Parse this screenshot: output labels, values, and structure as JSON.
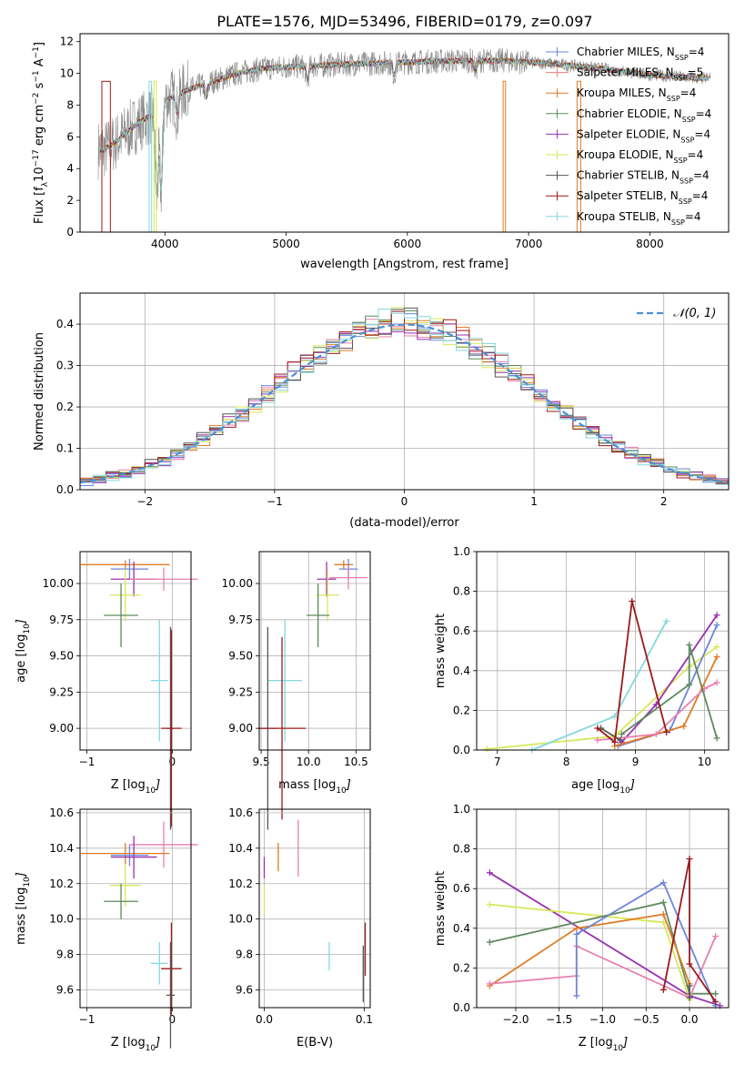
{
  "figure": {
    "title": "PLATE=1576, MJD=53496, FIBERID=0179, z=0.097"
  },
  "colors": {
    "chabrier_miles": "#6d86d9",
    "salpeter_miles": "#f07c7c",
    "kroupa_miles": "#e07b26",
    "chabrier_elodie": "#5e8a5e",
    "salpeter_elodie": "#9b30b0",
    "kroupa_elodie": "#d7e85a",
    "chabrier_stelib": "#555555",
    "salpeter_stelib": "#9b1a1a",
    "kroupa_stelib": "#84d8e0",
    "pink": "#e87fb0",
    "data_gray": "#8a8a8a",
    "normal_curve": "#4a90d9",
    "grid": "#b0b0b0"
  },
  "chart_data": [
    {
      "id": "spectrum",
      "type": "line",
      "title": "PLATE=1576, MJD=53496, FIBERID=0179, z=0.097",
      "xlabel": "wavelength [Angstrom, rest frame]",
      "ylabel_parts": [
        "Flux [f",
        "λ",
        "10",
        "−17",
        " erg cm",
        "−2",
        " s",
        "−1",
        " A",
        "−1",
        "]"
      ],
      "xlim": [
        3300,
        8650
      ],
      "ylim": [
        0,
        12.5
      ],
      "xticks": [
        4000,
        5000,
        6000,
        7000,
        8000
      ],
      "yticks": [
        0,
        2,
        4,
        6,
        8,
        10,
        12
      ],
      "grid": false,
      "legend_position": "right",
      "legend": [
        {
          "label": "Chabrier MILES, N",
          "sub": "SSP",
          "suffix": "=4",
          "color_key": "chabrier_miles"
        },
        {
          "label": "Salpeter MILES, N",
          "sub": "SSP",
          "suffix": "=5",
          "color_key": "salpeter_miles"
        },
        {
          "label": "Kroupa MILES, N",
          "sub": "SSP",
          "suffix": "=4",
          "color_key": "kroupa_miles"
        },
        {
          "label": "Chabrier ELODIE, N",
          "sub": "SSP",
          "suffix": "=4",
          "color_key": "chabrier_elodie"
        },
        {
          "label": "Salpeter ELODIE, N",
          "sub": "SSP",
          "suffix": "=4",
          "color_key": "salpeter_elodie"
        },
        {
          "label": "Kroupa ELODIE, N",
          "sub": "SSP",
          "suffix": "=4",
          "color_key": "kroupa_elodie"
        },
        {
          "label": "Chabrier STELIB, N",
          "sub": "SSP",
          "suffix": "=4",
          "color_key": "chabrier_stelib"
        },
        {
          "label": "Salpeter STELIB, N",
          "sub": "SSP",
          "suffix": "=4",
          "color_key": "salpeter_stelib"
        },
        {
          "label": "Kroupa STELIB, N",
          "sub": "SSP",
          "suffix": "=4",
          "color_key": "kroupa_stelib"
        }
      ],
      "continuum": [
        [
          3500,
          5.2
        ],
        [
          3600,
          5.7
        ],
        [
          3700,
          6.4
        ],
        [
          3800,
          7.0
        ],
        [
          3900,
          7.4
        ],
        [
          4000,
          8.3
        ],
        [
          4200,
          9.0
        ],
        [
          4400,
          9.5
        ],
        [
          4600,
          10.0
        ],
        [
          4800,
          10.3
        ],
        [
          5000,
          10.4
        ],
        [
          5300,
          10.5
        ],
        [
          5600,
          10.6
        ],
        [
          6000,
          10.7
        ],
        [
          6400,
          10.8
        ],
        [
          6800,
          10.8
        ],
        [
          7200,
          10.6
        ],
        [
          7600,
          10.3
        ],
        [
          8000,
          9.9
        ],
        [
          8400,
          9.7
        ]
      ],
      "dips": [
        [
          3933,
          2.0
        ],
        [
          3968,
          2.6
        ],
        [
          4102,
          7.5
        ],
        [
          4340,
          8.5
        ],
        [
          5175,
          9.6
        ],
        [
          5890,
          9.9
        ],
        [
          6563,
          10.2
        ]
      ],
      "gaps": [
        [
          3480,
          3550,
          "salpeter_stelib"
        ],
        [
          3870,
          3890,
          "kroupa_stelib"
        ],
        [
          3910,
          3930,
          "kroupa_elodie"
        ],
        [
          6790,
          6810,
          "kroupa_miles"
        ],
        [
          7400,
          7430,
          "kroupa_miles"
        ]
      ]
    },
    {
      "id": "residuals",
      "type": "histogram",
      "xlabel": "(data-model)/error",
      "ylabel": "Normed distribution",
      "xlim": [
        -2.5,
        2.5
      ],
      "ylim": [
        0,
        0.475
      ],
      "xticks": [
        -2,
        -1,
        0,
        1,
        2
      ],
      "yticks": [
        0.0,
        0.1,
        0.2,
        0.3,
        0.4
      ],
      "grid": true,
      "legend_position": "top-right",
      "legend_label": "𝒩(0, 1)",
      "bin_width": 0.1
    },
    {
      "id": "age_vs_Z",
      "type": "scatter",
      "xlabel": "Z [log10(Z/Z⊙)]",
      "ylabel": "age [log10(age/yr)]",
      "xlim": [
        -1.08,
        0.22
      ],
      "ylim": [
        8.85,
        10.22
      ],
      "xticks": [
        -1,
        0
      ],
      "yticks": [
        9.0,
        9.25,
        9.5,
        9.75,
        10.0
      ],
      "grid": true,
      "points": [
        {
          "color_key": "kroupa_miles",
          "x": -0.55,
          "xerr": 0.52,
          "y": 10.13,
          "yerr": 0.03
        },
        {
          "color_key": "chabrier_miles",
          "x": -0.5,
          "xerr": 0.22,
          "y": 10.1,
          "yerr": 0.07
        },
        {
          "color_key": "salpeter_elodie",
          "x": -0.45,
          "xerr": 0.27,
          "y": 10.03,
          "yerr": 0.12
        },
        {
          "color_key": "pink",
          "x": -0.1,
          "xerr": 0.4,
          "y": 10.03,
          "yerr": 0.08
        },
        {
          "color_key": "kroupa_elodie",
          "x": -0.55,
          "xerr": 0.18,
          "y": 9.92,
          "yerr": 0.18
        },
        {
          "color_key": "chabrier_elodie",
          "x": -0.6,
          "xerr": 0.2,
          "y": 9.78,
          "yerr": 0.22
        },
        {
          "color_key": "kroupa_stelib",
          "x": -0.15,
          "xerr": 0.1,
          "y": 9.33,
          "yerr": 0.42
        },
        {
          "color_key": "chabrier_stelib",
          "x": -0.02,
          "xerr": 0.05,
          "y": 9.0,
          "yerr": 0.7
        },
        {
          "color_key": "salpeter_stelib",
          "x": -0.01,
          "xerr": 0.12,
          "y": 9.0,
          "yerr": 0.68
        }
      ]
    },
    {
      "id": "age_vs_mass",
      "type": "scatter",
      "xlabel": "mass [log10(M/M⊙)]",
      "ylabel": "",
      "xlim": [
        9.48,
        10.65
      ],
      "ylim": [
        8.85,
        10.22
      ],
      "xticks": [
        9.5,
        10.0,
        10.5
      ],
      "yticks": [
        9.0,
        9.25,
        9.5,
        9.75,
        10.0
      ],
      "grid": true,
      "points": [
        {
          "color_key": "kroupa_miles",
          "x": 10.37,
          "xerr": 0.1,
          "y": 10.13,
          "yerr": 0.03
        },
        {
          "color_key": "chabrier_miles",
          "x": 10.42,
          "xerr": 0.1,
          "y": 10.1,
          "yerr": 0.07
        },
        {
          "color_key": "pink",
          "x": 10.42,
          "xerr": 0.2,
          "y": 10.04,
          "yerr": 0.08
        },
        {
          "color_key": "salpeter_elodie",
          "x": 10.19,
          "xerr": 0.1,
          "y": 10.03,
          "yerr": 0.12
        },
        {
          "color_key": "kroupa_elodie",
          "x": 10.2,
          "xerr": 0.12,
          "y": 9.92,
          "yerr": 0.18
        },
        {
          "color_key": "chabrier_elodie",
          "x": 10.1,
          "xerr": 0.12,
          "y": 9.78,
          "yerr": 0.22
        },
        {
          "color_key": "kroupa_stelib",
          "x": 9.75,
          "xerr": 0.18,
          "y": 9.33,
          "yerr": 0.42
        },
        {
          "color_key": "chabrier_stelib",
          "x": 9.57,
          "xerr": 0.1,
          "y": 9.0,
          "yerr": 0.7
        },
        {
          "color_key": "salpeter_stelib",
          "x": 9.72,
          "xerr": 0.25,
          "y": 9.0,
          "yerr": 0.63
        }
      ]
    },
    {
      "id": "mass_weight_vs_age",
      "type": "line",
      "xlabel": "age [log10(age/yr)]",
      "ylabel": "mass weight",
      "xlim": [
        6.7,
        10.35
      ],
      "ylim": [
        0,
        1.0
      ],
      "xticks": [
        7,
        8,
        9,
        10
      ],
      "yticks": [
        0.0,
        0.2,
        0.4,
        0.6,
        0.8,
        1.0
      ],
      "grid": true,
      "series": [
        {
          "color_key": "kroupa_elodie",
          "points": [
            [
              6.85,
              0.005
            ],
            [
              8.7,
              0.07
            ],
            [
              9.78,
              0.42
            ],
            [
              10.18,
              0.52
            ]
          ]
        },
        {
          "color_key": "kroupa_stelib",
          "points": [
            [
              7.5,
              0.0
            ],
            [
              8.7,
              0.17
            ],
            [
              9.45,
              0.65
            ]
          ]
        },
        {
          "color_key": "salpeter_elodie",
          "points": [
            [
              8.8,
              0.04
            ],
            [
              9.3,
              0.23
            ],
            [
              10.18,
              0.68
            ]
          ]
        },
        {
          "color_key": "chabrier_miles",
          "points": [
            [
              8.75,
              0.02
            ],
            [
              9.5,
              0.1
            ],
            [
              10.18,
              0.63
            ]
          ]
        },
        {
          "color_key": "kroupa_miles",
          "points": [
            [
              8.7,
              0.02
            ],
            [
              9.7,
              0.12
            ],
            [
              10.18,
              0.47
            ]
          ]
        },
        {
          "color_key": "pink",
          "points": [
            [
              8.45,
              0.05
            ],
            [
              9.3,
              0.08
            ],
            [
              10.0,
              0.31
            ],
            [
              10.18,
              0.34
            ]
          ]
        },
        {
          "color_key": "chabrier_elodie",
          "points": [
            [
              8.8,
              0.08
            ],
            [
              9.78,
              0.33
            ],
            [
              9.78,
              0.53
            ],
            [
              10.18,
              0.06
            ]
          ]
        },
        {
          "color_key": "chabrier_stelib",
          "points": [
            [
              8.5,
              0.11
            ],
            [
              8.78,
              0.05
            ]
          ]
        },
        {
          "color_key": "salpeter_stelib",
          "points": [
            [
              8.45,
              0.11
            ],
            [
              8.7,
              0.04
            ],
            [
              8.95,
              0.75
            ],
            [
              9.45,
              0.09
            ]
          ]
        }
      ]
    },
    {
      "id": "mass_vs_Z",
      "type": "scatter",
      "xlabel": "Z [log10(Z/Z⊙)]",
      "ylabel": "mass [log10(M/M⊙)]",
      "xlim": [
        -1.08,
        0.22
      ],
      "ylim": [
        9.5,
        10.62
      ],
      "xticks": [
        -1,
        0
      ],
      "yticks": [
        9.6,
        9.8,
        10.0,
        10.2,
        10.4,
        10.6
      ],
      "grid": true,
      "points": [
        {
          "color_key": "pink",
          "x": -0.1,
          "xerr": 0.4,
          "y": 10.42,
          "yerr": 0.13
        },
        {
          "color_key": "kroupa_miles",
          "x": -0.55,
          "xerr": 0.52,
          "y": 10.37,
          "yerr": 0.06
        },
        {
          "color_key": "chabrier_miles",
          "x": -0.5,
          "xerr": 0.22,
          "y": 10.36,
          "yerr": 0.06
        },
        {
          "color_key": "salpeter_elodie",
          "x": -0.45,
          "xerr": 0.27,
          "y": 10.35,
          "yerr": 0.12
        },
        {
          "color_key": "kroupa_elodie",
          "x": -0.55,
          "xerr": 0.18,
          "y": 10.19,
          "yerr": 0.12
        },
        {
          "color_key": "chabrier_elodie",
          "x": -0.6,
          "xerr": 0.2,
          "y": 10.1,
          "yerr": 0.1
        },
        {
          "color_key": "kroupa_stelib",
          "x": -0.15,
          "xerr": 0.1,
          "y": 9.75,
          "yerr": 0.12
        },
        {
          "color_key": "salpeter_stelib",
          "x": -0.01,
          "xerr": 0.12,
          "y": 9.72,
          "yerr": 0.26
        },
        {
          "color_key": "chabrier_stelib",
          "x": -0.02,
          "xerr": 0.05,
          "y": 9.57,
          "yerr": 0.3
        }
      ]
    },
    {
      "id": "mass_vs_ebv",
      "type": "scatter",
      "xlabel": "E(B-V)",
      "ylabel": "",
      "xlim": [
        -0.005,
        0.106
      ],
      "ylim": [
        9.5,
        10.62
      ],
      "xticks": [
        0.0,
        0.1
      ],
      "yticks": [
        9.6,
        9.8,
        10.0,
        10.2,
        10.4,
        10.6
      ],
      "grid": true,
      "points": [
        {
          "color_key": "salpeter_elodie",
          "x": 0.0,
          "y": 10.29,
          "yerr": 0.06
        },
        {
          "color_key": "kroupa_elodie",
          "x": 0.0,
          "y": 10.11,
          "yerr": 0.08
        },
        {
          "color_key": "kroupa_miles",
          "x": 0.014,
          "y": 10.35,
          "yerr": 0.08
        },
        {
          "color_key": "pink",
          "x": 0.034,
          "y": 10.4,
          "yerr": 0.16
        },
        {
          "color_key": "kroupa_stelib",
          "x": 0.065,
          "y": 9.79,
          "yerr": 0.08
        },
        {
          "color_key": "chabrier_stelib",
          "x": 0.099,
          "y": 9.69,
          "yerr": 0.16
        },
        {
          "color_key": "salpeter_stelib",
          "x": 0.101,
          "y": 9.83,
          "yerr": 0.15
        }
      ]
    },
    {
      "id": "mass_weight_vs_Z",
      "type": "line",
      "xlabel": "Z [log10(Z/Z⊙)]",
      "ylabel": "mass weight",
      "xlim": [
        -2.45,
        0.45
      ],
      "ylim": [
        0,
        1.0
      ],
      "xticks": [
        -2.0,
        -1.5,
        -1.0,
        -0.5,
        0.0
      ],
      "yticks": [
        0.0,
        0.2,
        0.4,
        0.6,
        0.8,
        1.0
      ],
      "grid": true,
      "series": [
        {
          "color_key": "salpeter_elodie",
          "points": [
            [
              -2.3,
              0.68
            ],
            [
              0.0,
              0.06
            ],
            [
              0.35,
              0.01
            ]
          ]
        },
        {
          "color_key": "kroupa_elodie",
          "points": [
            [
              -2.3,
              0.52
            ],
            [
              -0.3,
              0.43
            ],
            [
              0.0,
              0.04
            ]
          ]
        },
        {
          "color_key": "chabrier_elodie",
          "points": [
            [
              -2.3,
              0.33
            ],
            [
              -0.3,
              0.53
            ],
            [
              0.0,
              0.07
            ],
            [
              0.3,
              0.07
            ]
          ]
        },
        {
          "color_key": "kroupa_miles",
          "points": [
            [
              -2.3,
              0.11
            ],
            [
              -1.3,
              0.4
            ],
            [
              -0.3,
              0.47
            ],
            [
              0.0,
              0.12
            ]
          ]
        },
        {
          "color_key": "pink",
          "points": [
            [
              -2.3,
              0.12
            ],
            [
              -1.3,
              0.16
            ],
            [
              -1.3,
              0.31
            ],
            [
              0.0,
              0.05
            ],
            [
              0.3,
              0.36
            ]
          ]
        },
        {
          "color_key": "chabrier_miles",
          "points": [
            [
              -1.3,
              0.06
            ],
            [
              -1.3,
              0.37
            ],
            [
              -0.3,
              0.63
            ],
            [
              0.3,
              0.01
            ]
          ]
        },
        {
          "color_key": "salpeter_stelib",
          "points": [
            [
              -0.3,
              0.09
            ],
            [
              0.0,
              0.75
            ],
            [
              0.0,
              0.22
            ],
            [
              0.3,
              0.03
            ]
          ]
        },
        {
          "color_key": "chabrier_stelib",
          "points": [
            [
              0.0,
              0.11
            ],
            [
              0.0,
              0.05
            ]
          ]
        }
      ]
    }
  ]
}
